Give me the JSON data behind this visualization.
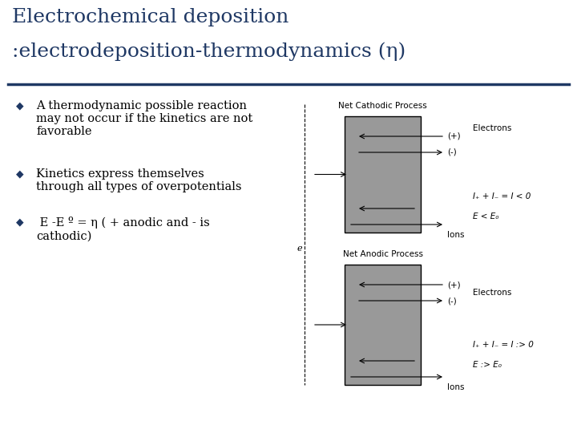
{
  "title_line1": "Electrochemical deposition",
  "title_line2": ":electrodeposition-thermodynamics (η)",
  "title_color": "#1F3864",
  "title_fontsize": 18,
  "background_color": "#FFFFFF",
  "separator_color": "#1F3864",
  "bullet_color": "#1F3864",
  "bullet_points": [
    "A thermodynamic possible reaction\nmay not occur if the kinetics are not\nfavorable",
    "Kinetics express themselves\nthrough all types of overpotentials",
    " E -E º = η ( + anodic and - is\ncathodic)"
  ],
  "bullet_fontsize": 10.5,
  "diagram_cathodic_title": "Net Cathodic Process",
  "diagram_anodic_title": "Net Anodic Process",
  "cathodic_eq1": "I₊ + I₋ = I < 0",
  "cathodic_eq2": "E < E₀",
  "anodic_eq1": "I₊ + I₋ = I :> 0",
  "anodic_eq2": "E :> E₀",
  "diagram_rect_color": "#999999",
  "diagram_fontsize": 7.5
}
